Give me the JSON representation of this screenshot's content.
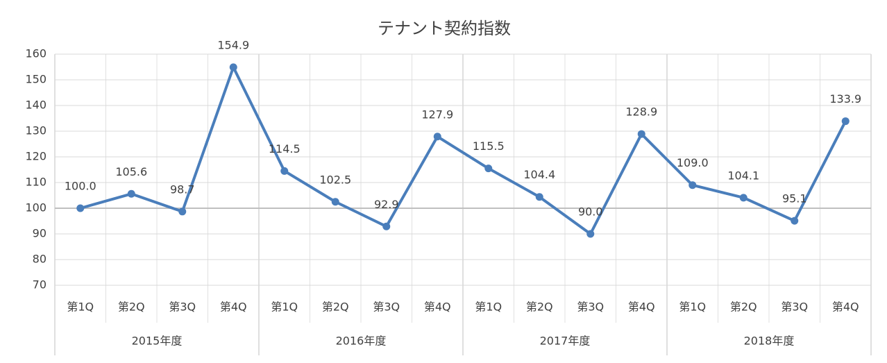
{
  "chart_data": {
    "type": "line",
    "title": "テナント契約指数",
    "categories": [
      "第1Q",
      "第2Q",
      "第3Q",
      "第4Q",
      "第1Q",
      "第2Q",
      "第3Q",
      "第4Q",
      "第1Q",
      "第2Q",
      "第3Q",
      "第4Q",
      "第1Q",
      "第2Q",
      "第3Q",
      "第4Q"
    ],
    "category_groups": [
      "2015年度",
      "2016年度",
      "2017年度",
      "2018年度"
    ],
    "series": [
      {
        "name": "テナント契約指数",
        "color": "#4a7ebb",
        "values": [
          100.0,
          105.6,
          98.7,
          154.9,
          114.5,
          102.5,
          92.9,
          127.9,
          115.5,
          104.4,
          90.0,
          128.9,
          109.0,
          104.1,
          95.1,
          133.9
        ],
        "value_labels": [
          "100.0",
          "105.6",
          "98.7",
          "154.9",
          "114.5",
          "102.5",
          "92.9",
          "127.9",
          "115.5",
          "104.4",
          "90.0",
          "128.9",
          "109.0",
          "104.1",
          "95.1",
          "133.9"
        ]
      }
    ],
    "ylim": [
      70,
      160
    ],
    "yticks": [
      70,
      80,
      90,
      100,
      110,
      120,
      130,
      140,
      150,
      160
    ],
    "x_axis_at": 100,
    "grid": true
  }
}
